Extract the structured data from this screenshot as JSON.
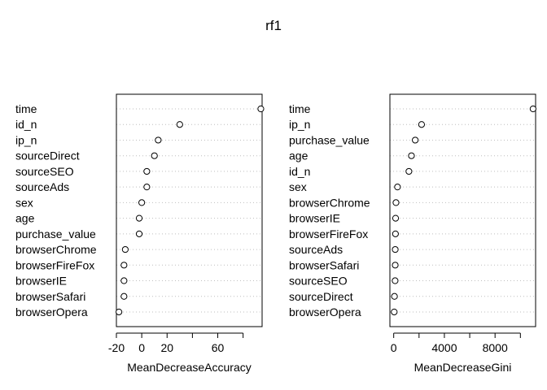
{
  "figure": {
    "title": "rf1"
  },
  "chart_data": [
    {
      "type": "scatter",
      "title": "",
      "xlabel": "MeanDecreaseAccuracy",
      "ylabel": "",
      "xlim": [
        -20,
        95
      ],
      "xticks": [
        -20,
        0,
        20,
        40,
        60,
        80
      ],
      "xtick_labels": [
        "-20",
        "0",
        "20",
        "",
        "60",
        ""
      ],
      "grid": "horizontal-dotted",
      "categories": [
        "time",
        "id_n",
        "ip_n",
        "sourceDirect",
        "sourceSEO",
        "sourceAds",
        "sex",
        "age",
        "purchase_value",
        "browserChrome",
        "browserFireFox",
        "browserIE",
        "browserSafari",
        "browserOpera"
      ],
      "values": [
        94,
        30,
        13,
        10,
        4,
        4,
        0,
        -2,
        -2,
        -13,
        -14,
        -14,
        -14,
        -18
      ]
    },
    {
      "type": "scatter",
      "title": "",
      "xlabel": "MeanDecreaseGini",
      "ylabel": "",
      "xlim": [
        -300,
        11200
      ],
      "xticks": [
        0,
        2000,
        4000,
        6000,
        8000,
        10000
      ],
      "xtick_labels": [
        "0",
        "",
        "4000",
        "",
        "8000",
        ""
      ],
      "grid": "horizontal-dotted",
      "categories": [
        "time",
        "ip_n",
        "purchase_value",
        "age",
        "id_n",
        "sex",
        "browserChrome",
        "browserIE",
        "browserFireFox",
        "sourceAds",
        "browserSafari",
        "sourceSEO",
        "sourceDirect",
        "browserOpera"
      ],
      "values": [
        11000,
        2200,
        1700,
        1400,
        1200,
        300,
        180,
        150,
        140,
        120,
        120,
        110,
        60,
        40
      ]
    }
  ]
}
